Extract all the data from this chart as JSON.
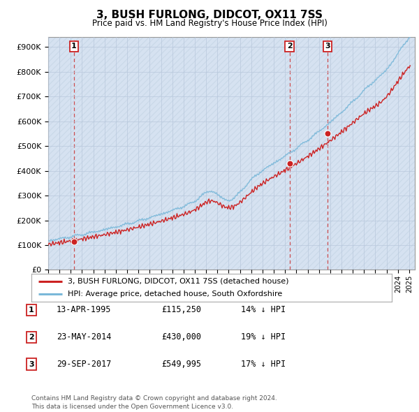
{
  "title": "3, BUSH FURLONG, DIDCOT, OX11 7SS",
  "subtitle": "Price paid vs. HM Land Registry's House Price Index (HPI)",
  "ylabel_ticks": [
    "£0",
    "£100K",
    "£200K",
    "£300K",
    "£400K",
    "£500K",
    "£600K",
    "£700K",
    "£800K",
    "£900K"
  ],
  "ytick_values": [
    0,
    100000,
    200000,
    300000,
    400000,
    500000,
    600000,
    700000,
    800000,
    900000
  ],
  "ylim": [
    0,
    940000
  ],
  "xlim_start": 1993.0,
  "xlim_end": 2025.5,
  "sale_dates": [
    1995.28,
    2014.39,
    2017.75
  ],
  "sale_prices": [
    115250,
    430000,
    549995
  ],
  "sale_labels": [
    "1",
    "2",
    "3"
  ],
  "hpi_line_color": "#7ab8d9",
  "price_line_color": "#cc2222",
  "dashed_line_color": "#cc3333",
  "bg_color": "#ffffff",
  "plot_bg_color": "#dce8f5",
  "hatch_bg_color": "#c8d4e8",
  "grid_color": "#b8c8dc",
  "legend_entries": [
    "3, BUSH FURLONG, DIDCOT, OX11 7SS (detached house)",
    "HPI: Average price, detached house, South Oxfordshire"
  ],
  "table_rows": [
    [
      "1",
      "13-APR-1995",
      "£115,250",
      "14% ↓ HPI"
    ],
    [
      "2",
      "23-MAY-2014",
      "£430,000",
      "19% ↓ HPI"
    ],
    [
      "3",
      "29-SEP-2017",
      "£549,995",
      "17% ↓ HPI"
    ]
  ],
  "footer": "Contains HM Land Registry data © Crown copyright and database right 2024.\nThis data is licensed under the Open Government Licence v3.0."
}
